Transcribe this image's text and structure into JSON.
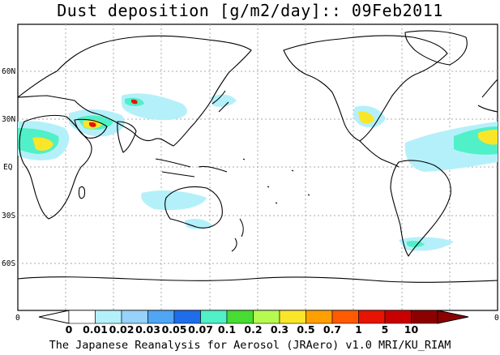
{
  "title": "Dust deposition [g/m2/day]:: 09Feb2011",
  "footer": "The Japanese Reanalysis for Aerosol (JRAero) v1.0 MRI/KU_RIAM",
  "lat_labels": [
    "60N",
    "30N",
    "EQ",
    "30S",
    "60S"
  ],
  "lon_edge_labels": [
    "0",
    "0"
  ],
  "colorbar": {
    "labels": [
      "0",
      "0.01",
      "0.02",
      "0.03",
      "0.05",
      "0.07",
      "0.1",
      "0.2",
      "0.3",
      "0.5",
      "0.7",
      "1",
      "5",
      "10"
    ],
    "colors": [
      "#ffffff",
      "#b4f0fa",
      "#96d2fa",
      "#50a5f5",
      "#1e6eeb",
      "#50f0c8",
      "#46dc32",
      "#b4fa50",
      "#fae628",
      "#ffa000",
      "#ff5a00",
      "#e61400",
      "#c80000",
      "#8c0000"
    ]
  },
  "colors": {
    "coast": "#000000",
    "grid": "#aaaaaa",
    "dust_low": "#b4f0fa",
    "dust_mid": "#50f0c8",
    "dust_high": "#fae628",
    "dust_peak": "#e61400"
  }
}
